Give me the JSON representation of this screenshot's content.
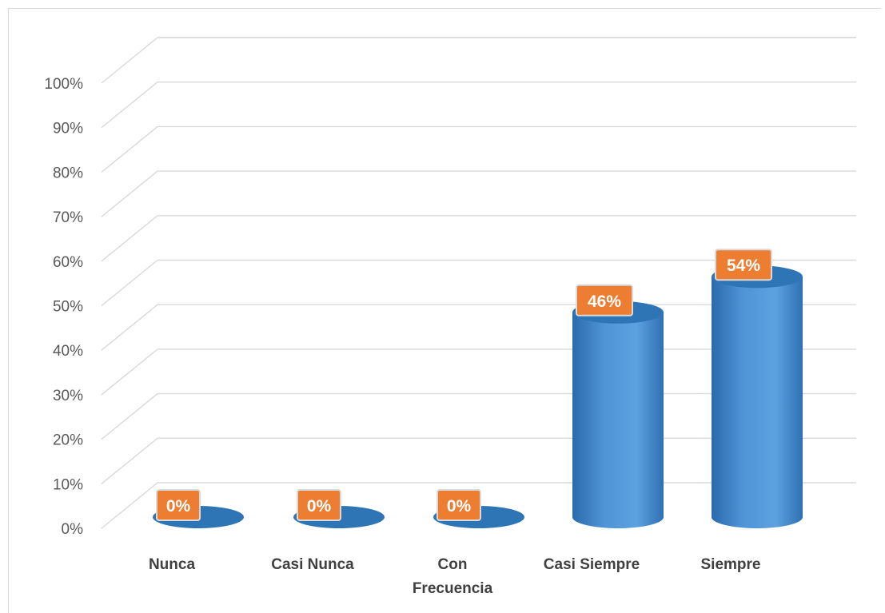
{
  "chart_data": {
    "type": "bar",
    "style": "3d-cylinder",
    "categories": [
      "Nunca",
      "Casi Nunca",
      "Con Frecuencia",
      "Casi Siempre",
      "Siempre"
    ],
    "category_lines": [
      [
        "Nunca"
      ],
      [
        "Casi Nunca"
      ],
      [
        "Con",
        "Frecuencia"
      ],
      [
        "Casi Siempre"
      ],
      [
        "Siempre"
      ]
    ],
    "values": [
      0,
      0,
      0,
      46,
      54
    ],
    "data_labels": [
      "0%",
      "0%",
      "0%",
      "46%",
      "54%"
    ],
    "y_ticks": [
      "0%",
      "10%",
      "20%",
      "30%",
      "40%",
      "50%",
      "60%",
      "70%",
      "80%",
      "90%",
      "100%"
    ],
    "ylim": [
      0,
      100
    ],
    "grid": true,
    "legend": "none",
    "title": "",
    "xlabel": "",
    "ylabel": "",
    "colors": {
      "bar": "#4a8fd0",
      "bar_top": "#2e75b6",
      "label_bg": "#ed7d31",
      "label_border": "#d9d9d9",
      "grid": "#d9d9d9"
    }
  }
}
